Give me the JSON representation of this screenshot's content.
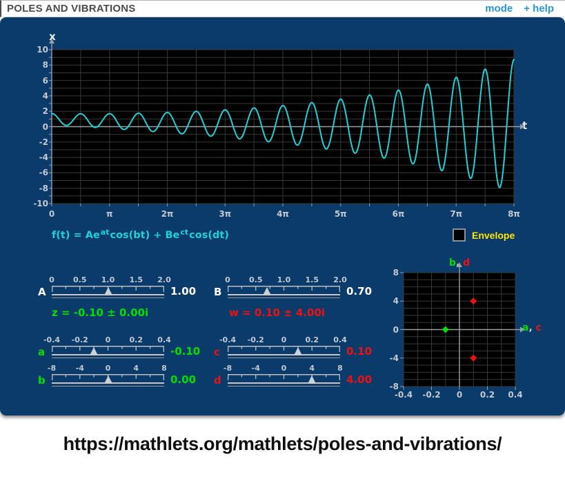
{
  "header": {
    "title": "POLES AND VIBRATIONS",
    "mode_label": "mode",
    "help_label": "+ help"
  },
  "colors": {
    "panel_bg": "#0b3b6b",
    "plot_bg": "#000000",
    "curve_cyan": "#1fd2d6",
    "green": "#00e000",
    "red": "#ee1111",
    "yellow": "#ffe600",
    "link_blue": "#2a96d4",
    "grid_gray": "#383838",
    "axis_gray": "#9aa0a6"
  },
  "formula": {
    "parts": [
      "f(t) = Ae",
      "at",
      "cos(bt) + Be",
      "ct",
      "cos(dt)"
    ]
  },
  "envelope": {
    "label": "Envelope",
    "checked": false
  },
  "sliders": [
    {
      "id": "A",
      "label": "A",
      "scale": [
        "0",
        "0.5",
        "1.0",
        "1.5",
        "2.0"
      ],
      "value": "1.00",
      "frac": 0.5,
      "color": "#ffffff"
    },
    {
      "id": "B",
      "label": "B",
      "scale": [
        "0",
        "0.5",
        "1.0",
        "1.5",
        "2.0"
      ],
      "value": "0.70",
      "frac": 0.35,
      "color": "#ffffff"
    },
    {
      "id": "a",
      "label": "a",
      "scale": [
        "-0.4",
        "-0.2",
        "0",
        "0.2",
        "0.4"
      ],
      "value": "-0.10",
      "frac": 0.375,
      "color": "#00e000"
    },
    {
      "id": "c",
      "label": "c",
      "scale": [
        "-0.4",
        "-0.2",
        "0",
        "0.2",
        "0.4"
      ],
      "value": "0.10",
      "frac": 0.625,
      "color": "#ee1111"
    },
    {
      "id": "b",
      "label": "b",
      "scale": [
        "-8",
        "-4",
        "0",
        "4",
        "8"
      ],
      "value": "0.00",
      "frac": 0.5,
      "color": "#00e000"
    },
    {
      "id": "d",
      "label": "d",
      "scale": [
        "-8",
        "-4",
        "0",
        "4",
        "8"
      ],
      "value": "4.00",
      "frac": 0.75,
      "color": "#ee1111"
    }
  ],
  "readouts": {
    "z": "z = -0.10 ± 0.00i",
    "w": "w = 0.10 ± 4.00i"
  },
  "chart_data": [
    {
      "type": "line",
      "id": "main-graph",
      "xlabel": "t",
      "ylabel": "x",
      "x_ticks": [
        "0",
        "π",
        "2π",
        "3π",
        "4π",
        "5π",
        "6π",
        "7π",
        "8π"
      ],
      "y_ticks": [
        "10",
        "8",
        "6",
        "4",
        "2",
        "0",
        "-2",
        "-4",
        "-6",
        "-8",
        "-10"
      ],
      "x_range_pi": [
        0,
        8
      ],
      "y_range": [
        -10,
        10
      ],
      "x_divisions": 16,
      "y_divisions": 20,
      "grid": true,
      "series": [
        {
          "name": "f(t)",
          "color": "#1fd2d6",
          "formula": "f(t) = A·e^(a t)·cos(b t) + B·e^(c t)·cos(d t)",
          "params": {
            "A": 1.0,
            "a": -0.1,
            "b": 0.0,
            "B": 0.7,
            "c": 0.1,
            "d": 4.0
          }
        }
      ]
    },
    {
      "type": "scatter",
      "id": "pole-plot",
      "xlabel_parts": [
        "a",
        "c"
      ],
      "ylabel_parts": [
        "b",
        "d"
      ],
      "label_separator": ", ",
      "x_ticks": [
        "-0.4",
        "-0.2",
        "0",
        "0.2",
        "0.4"
      ],
      "y_ticks": [
        "8",
        "4",
        "0",
        "-4",
        "-8"
      ],
      "x_range": [
        -0.4,
        0.4
      ],
      "y_range": [
        -8,
        8
      ],
      "x_divisions": 8,
      "y_divisions": 16,
      "grid": true,
      "points": [
        {
          "x": -0.1,
          "y": 0,
          "color": "#00e000"
        },
        {
          "x": 0.1,
          "y": 4,
          "color": "#ee1111"
        },
        {
          "x": 0.1,
          "y": -4,
          "color": "#ee1111"
        }
      ]
    }
  ],
  "footer": {
    "url": "https://mathlets.org/mathlets/poles-and-vibrations/"
  }
}
